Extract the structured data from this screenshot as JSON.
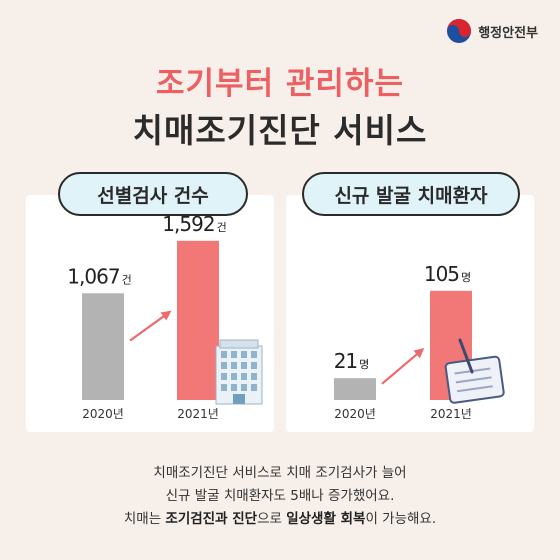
{
  "logo": {
    "text": "행정안전부",
    "icon": "taegeuk-icon"
  },
  "title": {
    "line1": "조기부터 관리하는",
    "line2": "치매조기진단 서비스"
  },
  "chart_data": [
    {
      "type": "bar",
      "title": "선별검사 건수",
      "categories": [
        "2020년",
        "2021년"
      ],
      "values": [
        1067,
        1592
      ],
      "value_labels": [
        "1,067",
        "1,592"
      ],
      "unit": "건",
      "colors": [
        "#b3b3b3",
        "#f27777"
      ],
      "ylim": [
        0,
        1700
      ],
      "decoration": "building-icon"
    },
    {
      "type": "bar",
      "title": "신규 발굴 치매환자",
      "categories": [
        "2020년",
        "2021년"
      ],
      "values": [
        21,
        105
      ],
      "value_labels": [
        "21",
        "105"
      ],
      "unit": "명",
      "colors": [
        "#b3b3b3",
        "#f27777"
      ],
      "ylim": [
        0,
        125
      ],
      "decoration": "tablet-pen-icon"
    }
  ],
  "caption": {
    "line1": "치매조기진단 서비스로 치매 조기검사가 늘어",
    "line2": "신규 발굴 치매환자도 5배나 증가했어요.",
    "line3_a": "치매는 ",
    "line3_b": "조기검진과 진단",
    "line3_c": "으로 ",
    "line3_d": "일상생활 회복",
    "line3_e": "이 가능해요."
  }
}
